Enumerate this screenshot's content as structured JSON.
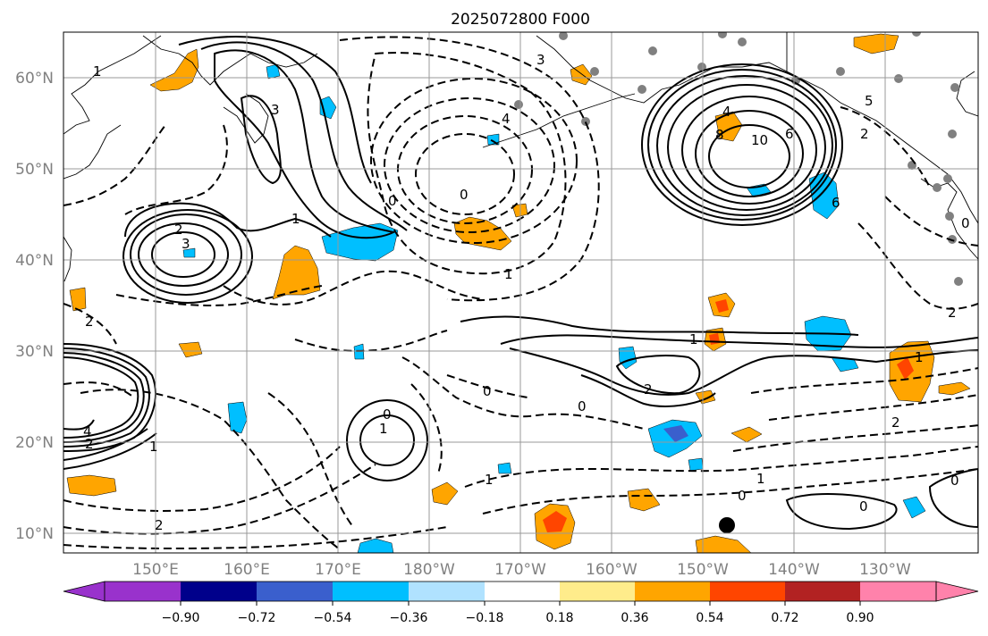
{
  "title": "2025072800 F000",
  "map": {
    "lat_labels": [
      "60°N",
      "50°N",
      "40°N",
      "30°N",
      "20°N",
      "10°N"
    ],
    "lon_labels": [
      "150°E",
      "160°E",
      "170°E",
      "180°W",
      "170°W",
      "160°W",
      "150°W",
      "140°W",
      "130°W"
    ],
    "contour_labels": [
      "1",
      "3",
      "2",
      "3",
      "0",
      "3",
      "4",
      "0",
      "1",
      "4",
      "8",
      "10",
      "6",
      "5",
      "2",
      "6",
      "2",
      "4",
      "2",
      "0",
      "1",
      "0",
      "0",
      "1",
      "2",
      "1",
      "2",
      "0",
      "1",
      "0",
      "1",
      "2",
      "0",
      "1",
      "0",
      "2",
      "1"
    ],
    "colors": {
      "positive_fill": "#ffa500",
      "strong_positive": "#ff4500",
      "negative_fill": "#00bfff",
      "strong_negative": "#3a5fcd"
    }
  },
  "colorbar": {
    "tick_labels": [
      "−0.90",
      "−0.72",
      "−0.54",
      "−0.36",
      "−0.18",
      "0.18",
      "0.36",
      "0.54",
      "0.72",
      "0.90"
    ],
    "colors": [
      "#9932cc",
      "#00008b",
      "#3a5fcd",
      "#00bfff",
      "#b0e2ff",
      "#ffffff",
      "#ffec8b",
      "#ffa500",
      "#ff4500",
      "#b22222",
      "#ff82ab"
    ]
  }
}
